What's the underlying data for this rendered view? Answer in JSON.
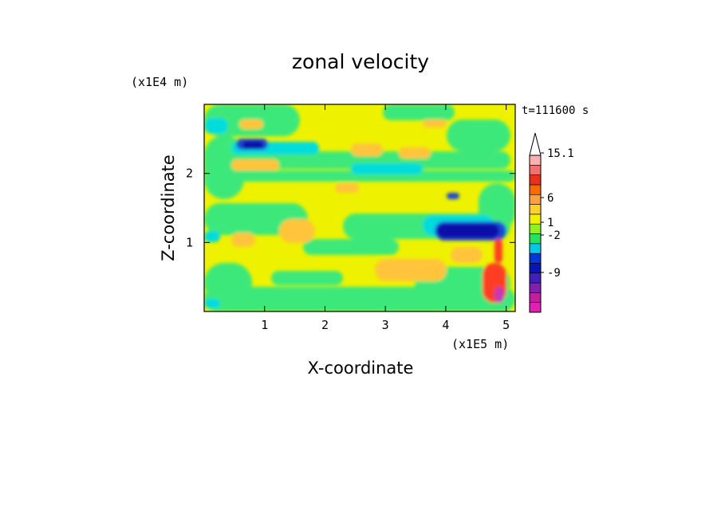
{
  "chart_data": {
    "type": "heatmap",
    "title": "zonal velocity",
    "xlabel": "X-coordinate",
    "ylabel": "Z-coordinate",
    "x_scale_label": "(x1E5 m)",
    "y_scale_label": "(x1E4 m)",
    "time_label": "t=111600 s",
    "xlim": [
      0,
      5.15
    ],
    "ylim": [
      0,
      3.0
    ],
    "x_ticks": [
      "1",
      "2",
      "3",
      "4",
      "5"
    ],
    "y_ticks": [
      "1",
      "2"
    ],
    "colorbar": {
      "levels": [
        {
          "color": "#e020b0"
        },
        {
          "color": "#c020a0"
        },
        {
          "color": "#8020b0"
        },
        {
          "color": "#4020b8"
        },
        {
          "color": "#0a14b4"
        },
        {
          "color": "#0038d8"
        },
        {
          "color": "#00c8e8"
        },
        {
          "color": "#28e060"
        },
        {
          "color": "#90f020"
        },
        {
          "color": "#f0f000"
        },
        {
          "color": "#ffd030"
        },
        {
          "color": "#ffa040"
        },
        {
          "color": "#ff6a00"
        },
        {
          "color": "#e83020"
        },
        {
          "color": "#f07070"
        },
        {
          "color": "#f8b0b0"
        }
      ],
      "labels": [
        "15.1",
        "6",
        "1",
        "-2",
        "-9"
      ],
      "overflow_color": "#ffffff"
    },
    "fields": {
      "yellow": "#eef200",
      "green": "#3ce87a",
      "orange": "#ffc43a",
      "cyan": "#00dcdc",
      "blue": "#1a4ad6",
      "darkblue": "#0c0ca8",
      "red": "#ff3e20",
      "magenta": "#c838b0"
    }
  }
}
